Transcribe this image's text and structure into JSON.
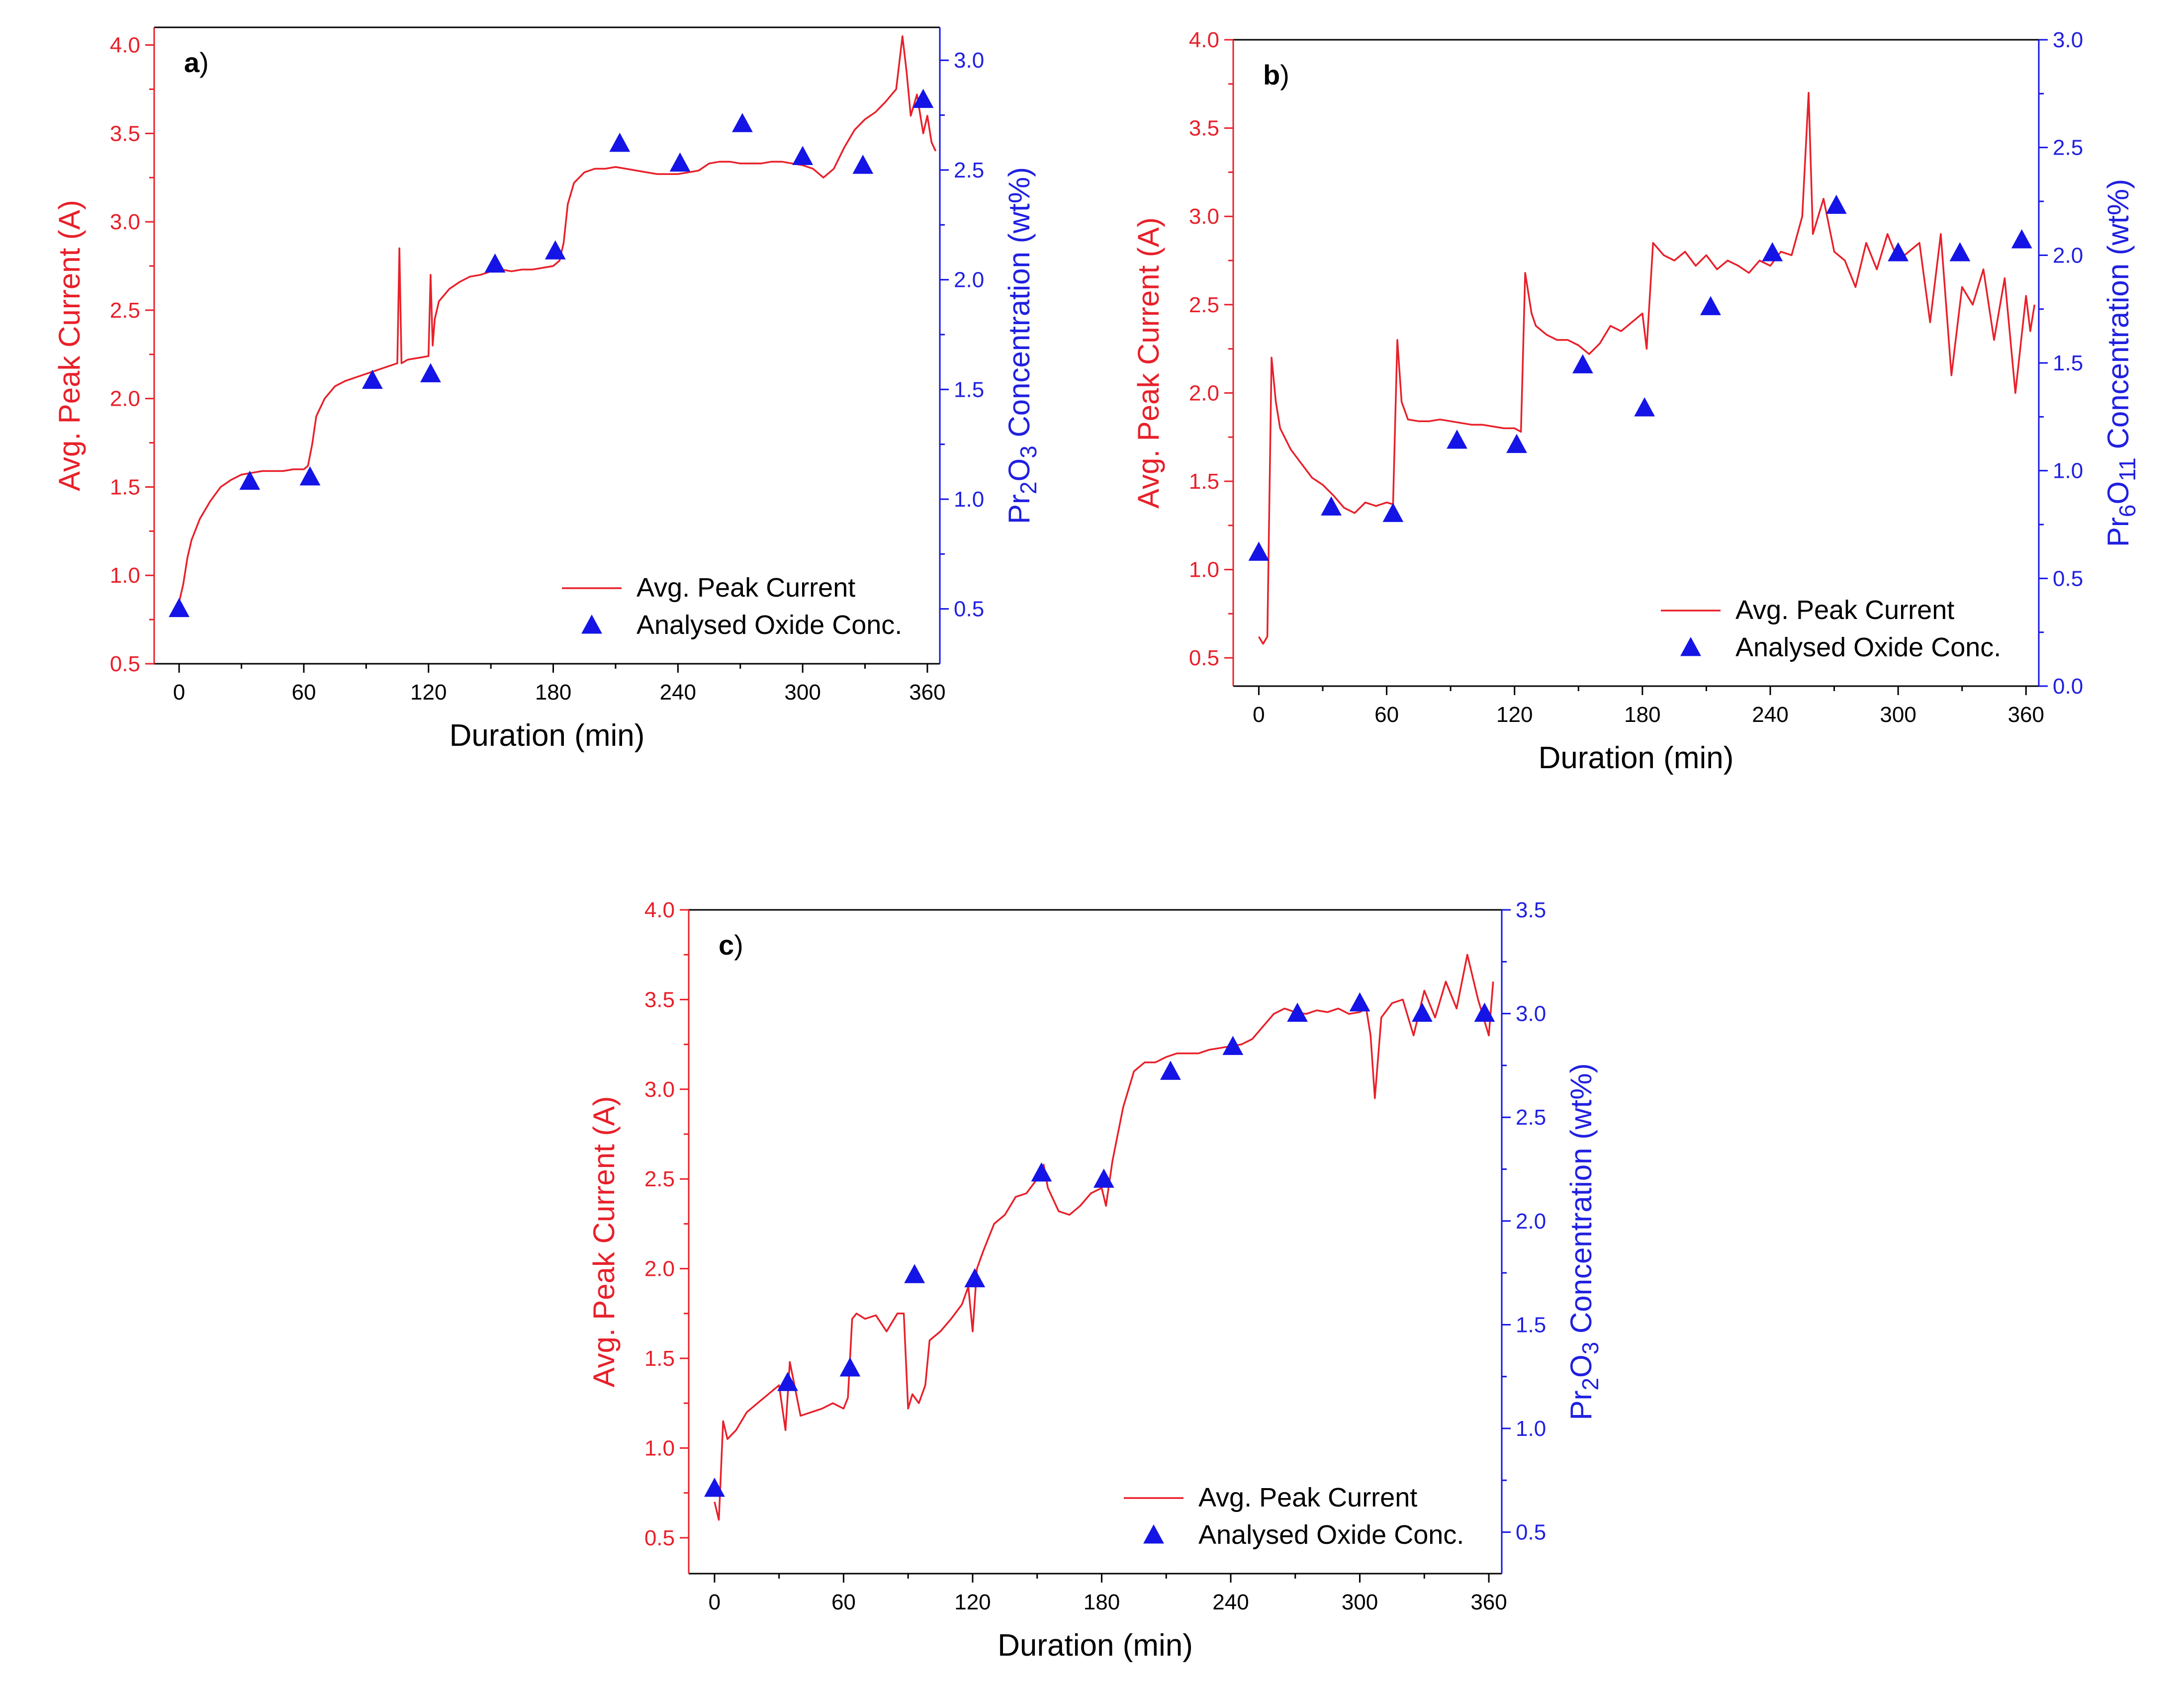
{
  "figure": {
    "colors": {
      "current": "#e8202a",
      "oxide": "#1414e6",
      "axis": "#000000"
    },
    "legend": {
      "line_label": "Avg. Peak Current",
      "marker_label": "Analysed Oxide Conc.",
      "placement": "bottom-right"
    }
  },
  "chart_data": [
    {
      "type": "line",
      "panel_label": "a",
      "title": "",
      "xlabel": "Duration (min)",
      "ylabel": "Avg. Peak Current (A)",
      "y2label": {
        "base": "Pr",
        "s1": "2",
        "mid": "O",
        "s2": "3",
        "rest": " Concentration (wt%)"
      },
      "xlim": [
        -12,
        366
      ],
      "ylim": [
        0.5,
        4.1
      ],
      "y2lim": [
        0.25,
        3.15
      ],
      "xticks": [
        0,
        60,
        120,
        180,
        240,
        300,
        360
      ],
      "yticks": [
        0.5,
        1.0,
        1.5,
        2.0,
        2.5,
        3.0,
        3.5,
        4.0
      ],
      "y2ticks": [
        0.5,
        1.0,
        1.5,
        2.0,
        2.5,
        3.0
      ],
      "series": [
        {
          "name": "Avg. Peak Current",
          "axis": "left",
          "x": [
            0,
            2,
            4,
            6,
            10,
            15,
            20,
            25,
            30,
            35,
            40,
            45,
            50,
            55,
            60,
            62,
            64,
            66,
            70,
            75,
            80,
            85,
            90,
            95,
            100,
            105,
            106,
            107,
            110,
            115,
            120,
            121,
            122,
            123,
            124,
            125,
            130,
            135,
            140,
            145,
            150,
            155,
            160,
            165,
            170,
            175,
            180,
            183,
            185,
            187,
            190,
            195,
            200,
            205,
            210,
            215,
            220,
            225,
            230,
            235,
            240,
            245,
            250,
            255,
            260,
            265,
            270,
            275,
            280,
            285,
            290,
            295,
            300,
            305,
            310,
            315,
            320,
            325,
            330,
            335,
            340,
            345,
            348,
            350,
            352,
            355,
            358,
            360,
            362,
            364
          ],
          "values": [
            0.85,
            0.95,
            1.1,
            1.2,
            1.32,
            1.42,
            1.5,
            1.54,
            1.57,
            1.58,
            1.59,
            1.59,
            1.59,
            1.6,
            1.6,
            1.62,
            1.74,
            1.9,
            2.0,
            2.07,
            2.1,
            2.12,
            2.14,
            2.16,
            2.18,
            2.2,
            2.85,
            2.2,
            2.22,
            2.23,
            2.24,
            2.7,
            2.3,
            2.45,
            2.5,
            2.55,
            2.62,
            2.66,
            2.69,
            2.7,
            2.72,
            2.73,
            2.72,
            2.73,
            2.73,
            2.74,
            2.75,
            2.78,
            2.88,
            3.1,
            3.22,
            3.28,
            3.3,
            3.3,
            3.31,
            3.3,
            3.29,
            3.28,
            3.27,
            3.27,
            3.27,
            3.28,
            3.29,
            3.33,
            3.34,
            3.34,
            3.33,
            3.33,
            3.33,
            3.34,
            3.34,
            3.33,
            3.32,
            3.3,
            3.25,
            3.3,
            3.42,
            3.52,
            3.58,
            3.62,
            3.68,
            3.75,
            4.05,
            3.85,
            3.6,
            3.72,
            3.5,
            3.6,
            3.45,
            3.4
          ]
        },
        {
          "name": "Analysed Oxide Conc.",
          "axis": "right",
          "x": [
            0,
            34,
            63,
            93,
            121,
            152,
            181,
            212,
            241,
            271,
            300,
            329,
            358
          ],
          "values": [
            0.5,
            1.08,
            1.1,
            1.54,
            1.57,
            2.07,
            2.13,
            2.62,
            2.53,
            2.71,
            2.56,
            2.52,
            2.82
          ]
        }
      ]
    },
    {
      "type": "line",
      "panel_label": "b",
      "title": "",
      "xlabel": "Duration (min)",
      "ylabel": "Avg. Peak Current (A)",
      "y2label": {
        "base": "Pr",
        "s1": "6",
        "mid": "O",
        "s2": "11",
        "rest": " Concentration (wt%)"
      },
      "xlim": [
        -12,
        366
      ],
      "ylim": [
        0.34,
        4.0
      ],
      "y2lim": [
        0.0,
        3.0
      ],
      "xticks": [
        0,
        60,
        120,
        180,
        240,
        300,
        360
      ],
      "yticks": [
        0.5,
        1.0,
        1.5,
        2.0,
        2.5,
        3.0,
        3.5,
        4.0
      ],
      "y2ticks": [
        0.0,
        0.5,
        1.0,
        1.5,
        2.0,
        2.5,
        3.0
      ],
      "series": [
        {
          "name": "Avg. Peak Current",
          "axis": "left",
          "x": [
            0,
            2,
            4,
            6,
            8,
            10,
            15,
            20,
            25,
            30,
            35,
            40,
            45,
            50,
            55,
            60,
            63,
            65,
            67,
            70,
            75,
            80,
            85,
            90,
            95,
            100,
            105,
            110,
            115,
            120,
            123,
            125,
            128,
            130,
            135,
            140,
            145,
            150,
            155,
            160,
            165,
            170,
            175,
            180,
            182,
            185,
            190,
            195,
            200,
            205,
            210,
            215,
            220,
            225,
            230,
            235,
            240,
            245,
            250,
            255,
            258,
            260,
            265,
            270,
            275,
            280,
            285,
            290,
            295,
            300,
            305,
            310,
            315,
            320,
            325,
            330,
            335,
            340,
            345,
            350,
            355,
            360,
            362,
            364
          ],
          "values": [
            0.62,
            0.58,
            0.62,
            2.2,
            1.95,
            1.8,
            1.68,
            1.6,
            1.52,
            1.48,
            1.42,
            1.35,
            1.32,
            1.38,
            1.36,
            1.38,
            1.37,
            2.3,
            1.95,
            1.85,
            1.84,
            1.84,
            1.85,
            1.84,
            1.83,
            1.82,
            1.82,
            1.81,
            1.8,
            1.8,
            1.78,
            2.68,
            2.45,
            2.38,
            2.33,
            2.3,
            2.3,
            2.27,
            2.22,
            2.28,
            2.38,
            2.35,
            2.4,
            2.45,
            2.25,
            2.85,
            2.78,
            2.75,
            2.8,
            2.72,
            2.78,
            2.7,
            2.75,
            2.72,
            2.68,
            2.75,
            2.72,
            2.8,
            2.78,
            3.0,
            3.7,
            2.9,
            3.1,
            2.8,
            2.75,
            2.6,
            2.85,
            2.7,
            2.9,
            2.75,
            2.8,
            2.85,
            2.4,
            2.9,
            2.1,
            2.6,
            2.5,
            2.7,
            2.3,
            2.65,
            2.0,
            2.55,
            2.35,
            2.5
          ]
        },
        {
          "name": "Analysed Oxide Conc.",
          "axis": "right",
          "x": [
            0,
            34,
            63,
            93,
            121,
            152,
            181,
            212,
            241,
            271,
            300,
            329,
            358
          ],
          "values": [
            0.62,
            0.83,
            0.8,
            1.14,
            1.12,
            1.49,
            1.29,
            1.76,
            2.01,
            2.23,
            2.01,
            2.01,
            2.07
          ]
        }
      ]
    },
    {
      "type": "line",
      "panel_label": "c",
      "title": "",
      "xlabel": "Duration (min)",
      "ylabel": "Avg. Peak Current (A)",
      "y2label": {
        "base": "Pr",
        "s1": "2",
        "mid": "O",
        "s2": "3",
        "rest": " Concentration (wt%)"
      },
      "xlim": [
        -12,
        366
      ],
      "ylim": [
        0.3,
        4.0
      ],
      "y2lim": [
        0.3,
        3.5
      ],
      "xticks": [
        0,
        60,
        120,
        180,
        240,
        300,
        360
      ],
      "yticks": [
        0.5,
        1.0,
        1.5,
        2.0,
        2.5,
        3.0,
        3.5,
        4.0
      ],
      "y2ticks": [
        0.5,
        1.0,
        1.5,
        2.0,
        2.5,
        3.0,
        3.5
      ],
      "series": [
        {
          "name": "Avg. Peak Current",
          "axis": "left",
          "x": [
            0,
            2,
            4,
            6,
            10,
            15,
            20,
            25,
            30,
            33,
            35,
            40,
            45,
            50,
            55,
            60,
            62,
            64,
            66,
            70,
            75,
            80,
            85,
            88,
            90,
            92,
            95,
            98,
            100,
            105,
            110,
            115,
            118,
            120,
            122,
            125,
            130,
            135,
            140,
            145,
            150,
            153,
            155,
            160,
            165,
            170,
            175,
            180,
            182,
            185,
            190,
            195,
            200,
            205,
            210,
            215,
            220,
            225,
            230,
            235,
            240,
            245,
            250,
            255,
            260,
            265,
            270,
            275,
            280,
            285,
            290,
            295,
            300,
            303,
            305,
            307,
            310,
            315,
            320,
            325,
            330,
            335,
            340,
            345,
            350,
            355,
            360,
            362
          ],
          "values": [
            0.7,
            0.6,
            1.15,
            1.05,
            1.1,
            1.2,
            1.25,
            1.3,
            1.35,
            1.1,
            1.48,
            1.18,
            1.2,
            1.22,
            1.25,
            1.22,
            1.28,
            1.72,
            1.75,
            1.72,
            1.74,
            1.65,
            1.75,
            1.75,
            1.22,
            1.3,
            1.25,
            1.35,
            1.6,
            1.65,
            1.72,
            1.8,
            1.9,
            1.65,
            2.0,
            2.1,
            2.25,
            2.3,
            2.4,
            2.42,
            2.5,
            2.58,
            2.45,
            2.32,
            2.3,
            2.35,
            2.42,
            2.45,
            2.35,
            2.6,
            2.9,
            3.1,
            3.15,
            3.15,
            3.18,
            3.2,
            3.2,
            3.2,
            3.22,
            3.23,
            3.24,
            3.25,
            3.28,
            3.35,
            3.42,
            3.45,
            3.43,
            3.42,
            3.44,
            3.43,
            3.45,
            3.42,
            3.43,
            3.45,
            3.3,
            2.95,
            3.4,
            3.48,
            3.5,
            3.3,
            3.55,
            3.4,
            3.6,
            3.45,
            3.75,
            3.5,
            3.3,
            3.6
          ]
        },
        {
          "name": "Analysed Oxide Conc.",
          "axis": "right",
          "x": [
            0,
            34,
            63,
            93,
            121,
            152,
            181,
            212,
            241,
            271,
            300,
            329,
            358
          ],
          "values": [
            0.71,
            1.22,
            1.29,
            1.74,
            1.72,
            2.23,
            2.2,
            2.72,
            2.84,
            3.0,
            3.05,
            3.0,
            3.0
          ]
        }
      ]
    }
  ]
}
